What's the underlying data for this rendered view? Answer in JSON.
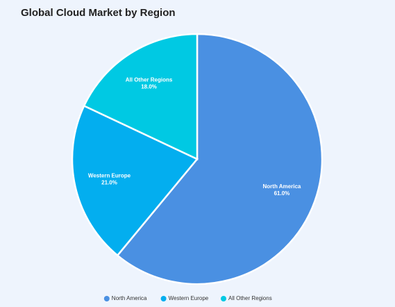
{
  "chart_data": {
    "type": "pie",
    "title": "Global Cloud Market by Region",
    "categories": [
      "North America",
      "Western Europe",
      "All Other Regions"
    ],
    "values": [
      61.0,
      21.0,
      18.0
    ],
    "value_labels": [
      "61.0%",
      "21.0%",
      "18.0%"
    ],
    "colors": [
      "#4a90e2",
      "#03aeef",
      "#00c9e3"
    ],
    "legend": "bottom"
  }
}
